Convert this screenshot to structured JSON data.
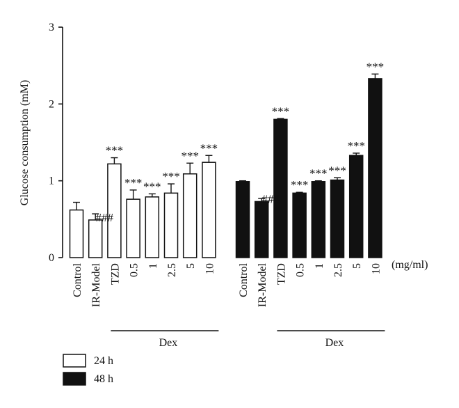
{
  "chart_data": {
    "type": "bar",
    "ylabel": "Glucose consumption (mM)",
    "ylim": [
      0,
      3
    ],
    "yticks": [
      "0",
      "1",
      "2",
      "3"
    ],
    "unit_label": "(mg/ml)",
    "group_label": "Dex",
    "categories": [
      "Control",
      "IR-Model",
      "TZD",
      "0.5",
      "1",
      "2.5",
      "5",
      "10"
    ],
    "series": [
      {
        "name": "24 h",
        "color": "#ffffff",
        "values": [
          0.62,
          0.49,
          1.22,
          0.76,
          0.79,
          0.84,
          1.09,
          1.24
        ],
        "errors": [
          0.1,
          0.08,
          0.08,
          0.12,
          0.04,
          0.12,
          0.14,
          0.09
        ],
        "annotations": [
          "",
          "###",
          "***",
          "***",
          "***",
          "***",
          "***",
          "***"
        ]
      },
      {
        "name": "48 h",
        "color": "#111111",
        "values": [
          0.99,
          0.73,
          1.8,
          0.84,
          0.99,
          1.01,
          1.33,
          2.33
        ],
        "errors": [
          0.01,
          0.04,
          0.01,
          0.01,
          0.01,
          0.03,
          0.03,
          0.06
        ],
        "annotations": [
          "",
          "###",
          "***",
          "***",
          "***",
          "***",
          "***",
          "***"
        ]
      }
    ],
    "legend_position": "bottom-left"
  }
}
